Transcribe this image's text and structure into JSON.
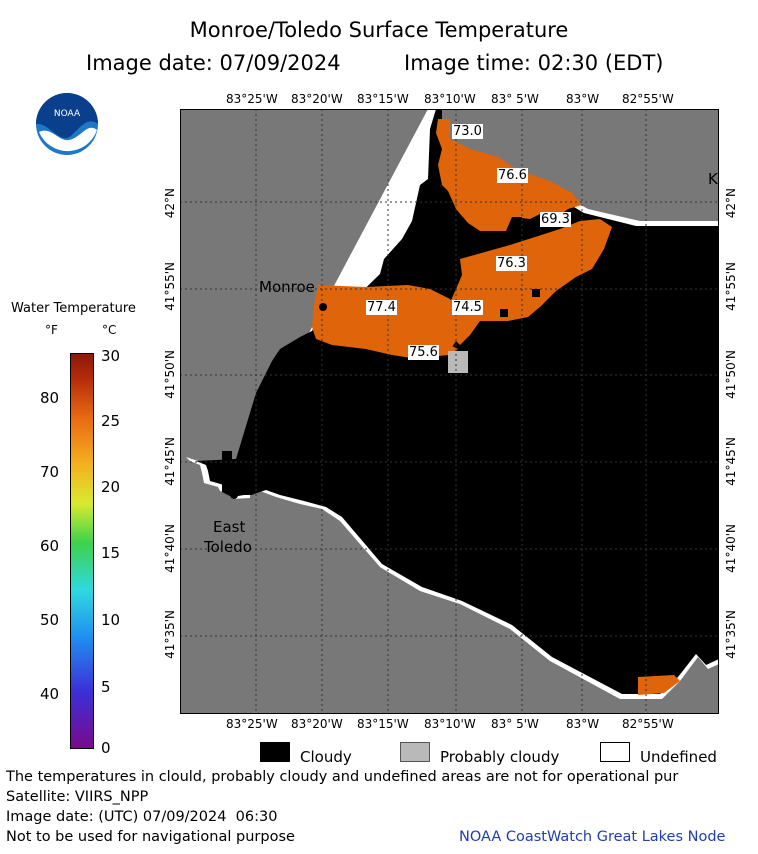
{
  "header": {
    "title": "Monroe/Toledo Surface Temperature",
    "image_date": "Image date: 07/09/2024",
    "image_time": "Image time: 02:30 (EDT)"
  },
  "logo": {
    "text": "NOAA"
  },
  "map": {
    "top_ticks": [
      "83°25'W",
      "83°20'W",
      "83°15'W",
      "83°10'W",
      "83° 5'W",
      "83°W",
      "82°55'W"
    ],
    "bottom_ticks": [
      "83°25'W",
      "83°20'W",
      "83°15'W",
      "83°10'W",
      "83° 5'W",
      "83°W",
      "82°55'W"
    ],
    "left_ticks": [
      "42°N",
      "41°55'N",
      "41°50'N",
      "41°45'N",
      "41°40'N",
      "41°35'N"
    ],
    "right_ticks": [
      "42°N",
      "41°55'N",
      "41°50'N",
      "41°45'N",
      "41°40'N",
      "41°35'N"
    ],
    "places": {
      "monroe": "Monroe",
      "east_toledo_1": "East",
      "east_toledo_2": "Toledo",
      "edge_label": "K"
    },
    "temperature_labels": [
      "73.0",
      "76.6",
      "69.3",
      "76.3",
      "77.4",
      "74.5",
      "75.6"
    ],
    "colors": {
      "land": "#787878",
      "cloud": "#000000",
      "water_warm": "#e0640a",
      "probably_cloudy": "#b9b9b9",
      "undefined": "#ffffff"
    }
  },
  "colorbar": {
    "title": "Water Temperature",
    "unit_f": "°F",
    "unit_c": "°C",
    "f_ticks": [
      "80",
      "70",
      "60",
      "50",
      "40"
    ],
    "c_ticks": [
      "30",
      "25",
      "20",
      "15",
      "10",
      "5",
      "0"
    ]
  },
  "legend": {
    "cloudy": "Cloudy",
    "probably_cloudy": "Probably cloudy",
    "undefined": "Undefined"
  },
  "footer": {
    "line1": "The temperatures in clould, probably cloudy and undefined areas are not for operational pur",
    "line2": "Satellite: VIIRS_NPP",
    "line3": "Image date: (UTC) 07/09/2024  06:30",
    "line4": "Not to be used for navigational purpose",
    "credit": "NOAA CoastWatch Great Lakes Node"
  }
}
